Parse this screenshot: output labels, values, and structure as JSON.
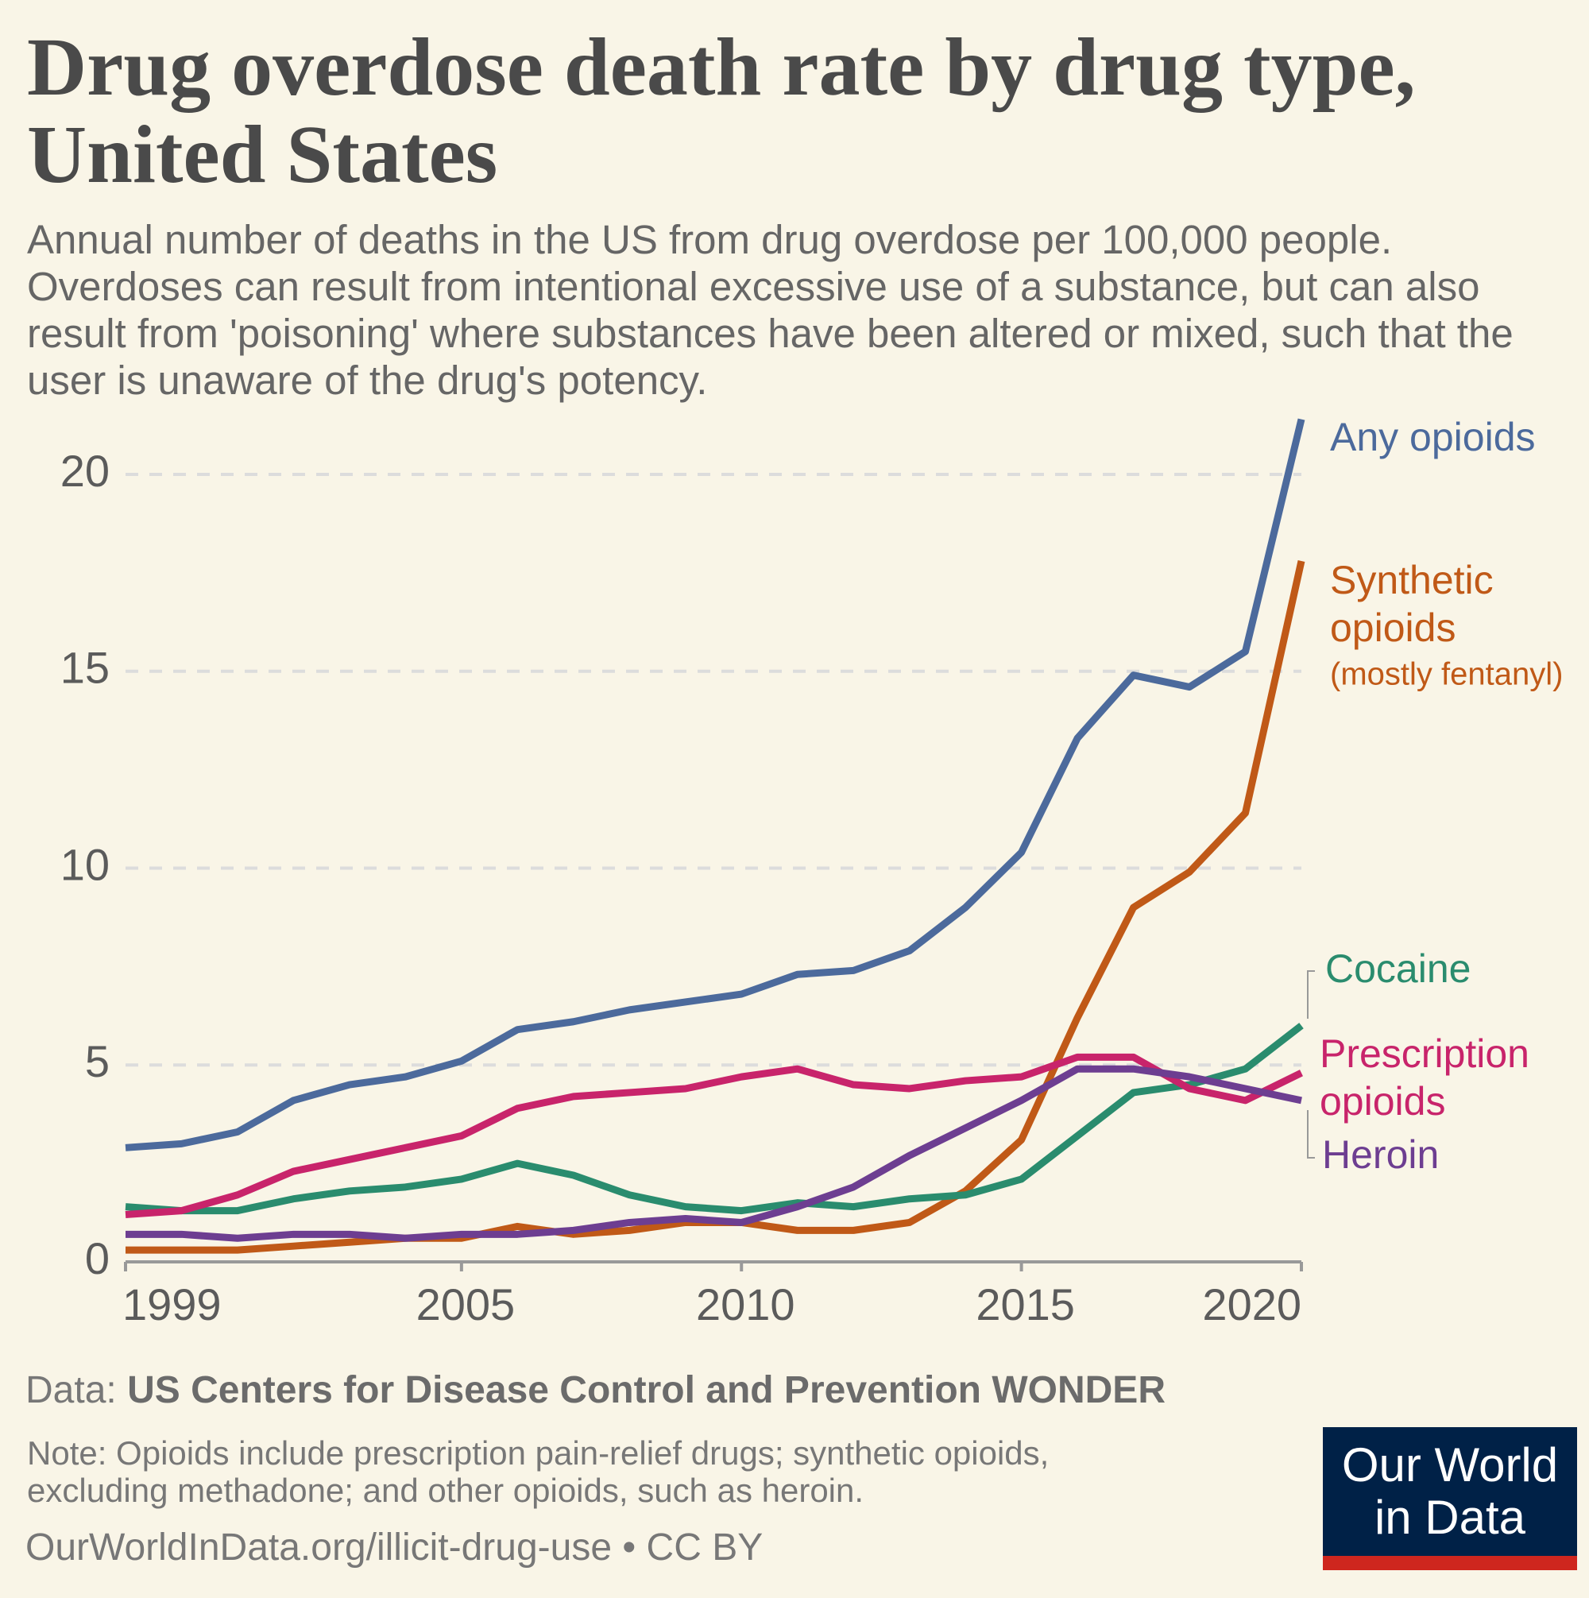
{
  "chart_data": {
    "type": "line",
    "title": "Drug overdose death rate by drug type, United States",
    "subtitle": "Annual number of deaths in the US from drug overdose per 100,000 people. Overdoses can result from intentional excessive use of a substance, but can also result from 'poisoning' where substances have been altered or mixed, such that the user is unaware of the drug's potency.",
    "x": [
      1999,
      2000,
      2001,
      2002,
      2003,
      2004,
      2005,
      2006,
      2007,
      2008,
      2009,
      2010,
      2011,
      2012,
      2013,
      2014,
      2015,
      2016,
      2017,
      2018,
      2019,
      2020
    ],
    "xlim": [
      1999,
      2020
    ],
    "xticks": [
      1999,
      2005,
      2010,
      2015,
      2020
    ],
    "ylim": [
      0,
      21.4
    ],
    "yticks": [
      0,
      5,
      10,
      15,
      20
    ],
    "grid": true,
    "series": [
      {
        "name": "Any opioids",
        "color": "#4c6a9c",
        "values": [
          2.9,
          3.0,
          3.3,
          4.1,
          4.5,
          4.7,
          5.1,
          5.9,
          6.1,
          6.4,
          6.6,
          6.8,
          7.3,
          7.4,
          7.9,
          9.0,
          10.4,
          13.3,
          14.9,
          14.6,
          15.5,
          21.4
        ]
      },
      {
        "name": "Synthetic opioids",
        "note": "(mostly fentanyl)",
        "color": "#c05917",
        "values": [
          0.3,
          0.3,
          0.3,
          0.4,
          0.5,
          0.6,
          0.6,
          0.9,
          0.7,
          0.8,
          1.0,
          1.0,
          0.8,
          0.8,
          1.0,
          1.8,
          3.1,
          6.2,
          9.0,
          9.9,
          11.4,
          17.8
        ]
      },
      {
        "name": "Cocaine",
        "color": "#2a8c6e",
        "values": [
          1.4,
          1.3,
          1.3,
          1.6,
          1.8,
          1.9,
          2.1,
          2.5,
          2.2,
          1.7,
          1.4,
          1.3,
          1.5,
          1.4,
          1.6,
          1.7,
          2.1,
          3.2,
          4.3,
          4.5,
          4.9,
          6.0
        ]
      },
      {
        "name": "Prescription opioids",
        "color": "#c8246b",
        "values": [
          1.2,
          1.3,
          1.7,
          2.3,
          2.6,
          2.9,
          3.2,
          3.9,
          4.2,
          4.3,
          4.4,
          4.7,
          4.9,
          4.5,
          4.4,
          4.6,
          4.7,
          5.2,
          5.2,
          4.4,
          4.1,
          4.8
        ]
      },
      {
        "name": "Heroin",
        "color": "#6d3e91",
        "values": [
          0.7,
          0.7,
          0.6,
          0.7,
          0.7,
          0.6,
          0.7,
          0.7,
          0.8,
          1.0,
          1.1,
          1.0,
          1.4,
          1.9,
          2.7,
          3.4,
          4.1,
          4.9,
          4.9,
          4.7,
          4.4,
          4.1
        ]
      }
    ],
    "source_label": "Data:",
    "source": "US Centers for Disease Control and Prevention WONDER",
    "note": "Note: Opioids include prescription pain-relief drugs; synthetic opioids, excluding methadone; and other opioids, such as heroin.",
    "url": "OurWorldInData.org/illicit-drug-use • CC BY"
  },
  "logo": "Our World in Data"
}
